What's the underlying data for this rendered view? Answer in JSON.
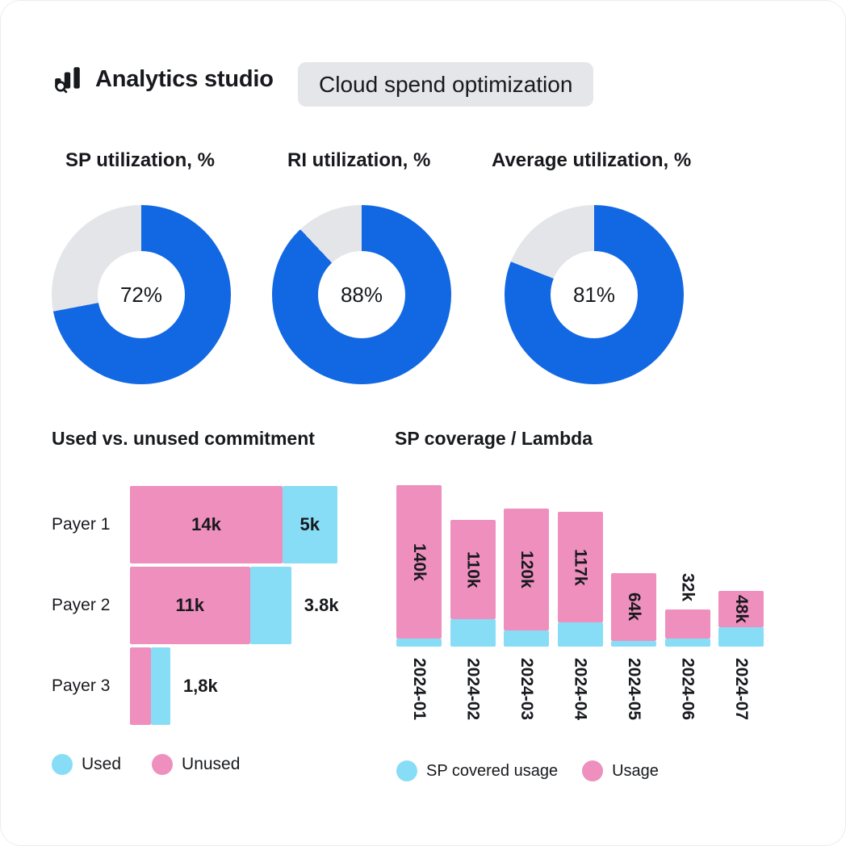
{
  "header": {
    "app_title": "Analytics studio",
    "badge": "Cloud spend optimization"
  },
  "colors": {
    "accent_blue": "#1268E3",
    "donut_rest_gray": "#E4E5E8",
    "pink": "#EF8FBE",
    "cyan": "#87DDF6",
    "text": "#17191D",
    "badge_bg": "#E5E6E9"
  },
  "chart_data": [
    {
      "type": "pie",
      "variant": "donut",
      "title": "SP utilization, %",
      "value_pct": 72,
      "center_label": "72%"
    },
    {
      "type": "pie",
      "variant": "donut",
      "title": "RI utilization, %",
      "value_pct": 88,
      "center_label": "88%"
    },
    {
      "type": "pie",
      "variant": "donut",
      "title": "Average utilization, %",
      "value_pct": 81,
      "center_label": "81%"
    },
    {
      "type": "bar",
      "variant": "horizontal-stacked",
      "title": "Used vs. unused commitment",
      "categories": [
        "Payer 1",
        "Payer 2",
        "Payer 3"
      ],
      "series": [
        {
          "name": "Unused",
          "values_k": [
            14,
            11,
            1.9
          ],
          "bar_labels": [
            "14k",
            "11k",
            ""
          ]
        },
        {
          "name": "Used",
          "values_k": [
            5,
            3.8,
            1.8
          ],
          "bar_labels": [
            "5k",
            "",
            ""
          ]
        }
      ],
      "outside_labels": [
        "",
        "3.8k",
        "1,8k"
      ],
      "legend": [
        "Used",
        "Unused"
      ]
    },
    {
      "type": "bar",
      "variant": "vertical-stacked",
      "title": "SP coverage / Lambda",
      "categories": [
        "2024-01",
        "2024-02",
        "2024-03",
        "2024-04",
        "2024-05",
        "2024-06",
        "2024-07"
      ],
      "totals_k": [
        140,
        110,
        120,
        117,
        64,
        32,
        48
      ],
      "bar_labels": [
        "140k",
        "110k",
        "120k",
        "117k",
        "64k",
        "32k",
        "48k"
      ],
      "series": [
        {
          "name": "SP covered usage",
          "values_k": [
            7,
            24,
            14,
            21,
            5,
            7,
            17
          ],
          "estimated": true
        },
        {
          "name": "Usage",
          "values_k": [
            133,
            86,
            106,
            96,
            59,
            25,
            31
          ],
          "estimated": true
        }
      ],
      "legend": [
        "SP covered usage",
        "Usage"
      ]
    }
  ]
}
